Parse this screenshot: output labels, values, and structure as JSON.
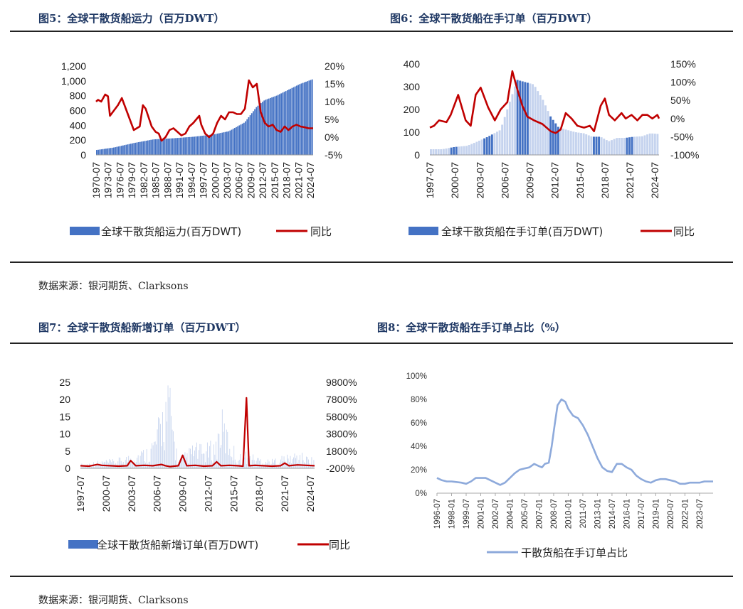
{
  "titles": {
    "fig5": "图5：全球干散货船运力（百万DWT）",
    "fig6": "图6：全球干散货船在手订单（百万DWT）",
    "fig7": "图7：全球干散货船新增订单（百万DWT）",
    "fig8": "图8：全球干散货船在手订单占比（%）"
  },
  "sources": {
    "top": "数据来源：银河期货、Clarksons",
    "bottom": "数据来源：银河期货、Clarksons"
  },
  "colors": {
    "bar": "#4472c4",
    "bar_light": "#c5d3ee",
    "line": "#c00000",
    "line8": "#8eaadb",
    "title": "#1f3864"
  },
  "chart_data": [
    {
      "id": "fig5",
      "type": "bar",
      "x_start": 1970.5,
      "x_end": 2025.2,
      "x_ticks": [
        "1970-07",
        "1973-07",
        "1976-07",
        "1979-07",
        "1982-07",
        "1985-07",
        "1988-07",
        "1991-07",
        "1994-07",
        "1997-07",
        "2000-07",
        "2003-07",
        "2006-07",
        "2009-07",
        "2012-07",
        "2015-07",
        "2018-07",
        "2021-07",
        "2024-07"
      ],
      "ylim": [
        0,
        1200
      ],
      "y_ticks": [
        "0",
        "200",
        "400",
        "600",
        "800",
        "1,000",
        "1,200"
      ],
      "y2lim": [
        -5,
        20
      ],
      "y2_ticks": [
        "-5%",
        "0%",
        "5%",
        "10%",
        "15%",
        "20%"
      ],
      "series": [
        {
          "name": "全球干散货船运力(百万DWT)",
          "type": "bar",
          "axis": "left",
          "x": [
            1970.5,
            1975,
            1980,
            1985,
            1990,
            1995,
            2000,
            2004,
            2008,
            2011,
            2013,
            2016,
            2019,
            2022,
            2025
          ],
          "values": [
            65,
            100,
            160,
            210,
            225,
            245,
            275,
            320,
            440,
            650,
            740,
            800,
            880,
            960,
            1020
          ]
        },
        {
          "name": "同比",
          "type": "line",
          "axis": "right",
          "x": [
            1970.5,
            1971,
            1971.8,
            1972.8,
            1973.5,
            1974,
            1976,
            1977,
            1979,
            1980,
            1981.5,
            1982.3,
            1983,
            1984.5,
            1985.5,
            1986.3,
            1987,
            1988,
            1989,
            1990,
            1991,
            1992,
            1993,
            1994,
            1995,
            1996.5,
            1997,
            1998,
            1999,
            2000,
            2001,
            2002,
            2003,
            2004,
            2005,
            2006,
            2007,
            2008,
            2008.5,
            2009,
            2010,
            2011,
            2012,
            2013,
            2014,
            2015,
            2016,
            2017,
            2018,
            2019,
            2020,
            2021,
            2022,
            2023,
            2024,
            2025.2
          ],
          "values": [
            10,
            10.5,
            10,
            12,
            11.5,
            6,
            9,
            11,
            5,
            2,
            3,
            9,
            8,
            3,
            1.5,
            1,
            -1,
            0,
            2,
            2.5,
            1.5,
            0.5,
            1,
            3,
            4,
            6,
            3.5,
            1,
            0,
            1,
            4,
            6,
            5,
            7,
            7,
            6.5,
            6.5,
            8,
            12,
            16,
            14,
            15,
            7,
            4,
            3,
            3.5,
            2,
            1.5,
            3,
            2,
            3,
            3.5,
            3,
            2.8,
            2.5,
            2.5
          ]
        }
      ]
    },
    {
      "id": "fig6",
      "type": "bar",
      "x_start": 1997.5,
      "x_end": 2025.0,
      "x_ticks": [
        "1997-07",
        "2000-07",
        "2003-07",
        "2006-07",
        "2009-07",
        "2012-07",
        "2015-07",
        "2018-07",
        "2021-07",
        "2024-07"
      ],
      "ylim": [
        0,
        400
      ],
      "y_ticks": [
        "0",
        "100",
        "200",
        "300",
        "400"
      ],
      "y2lim": [
        -100,
        150
      ],
      "y2_ticks": [
        "-100%",
        "-50%",
        "0%",
        "50%",
        "100%",
        "150%"
      ],
      "series": [
        {
          "name": "全球干散货船在手订单(百万DWT)",
          "type": "bar",
          "axis": "left",
          "x": [
            1997.5,
            1999,
            2000.5,
            2002,
            2003,
            2004.5,
            2006,
            2007,
            2008,
            2009,
            2010,
            2011,
            2012,
            2013,
            2014,
            2015,
            2016,
            2017,
            2018,
            2019,
            2020,
            2021,
            2022,
            2023,
            2024,
            2025
          ],
          "values": [
            25,
            25,
            35,
            40,
            55,
            80,
            110,
            220,
            330,
            320,
            310,
            250,
            170,
            120,
            110,
            100,
            95,
            80,
            80,
            60,
            75,
            75,
            80,
            82,
            95,
            92
          ]
        },
        {
          "name": "同比",
          "type": "line",
          "axis": "right",
          "x": [
            1997.5,
            1998,
            1998.6,
            1999.5,
            2000,
            2000.9,
            2001.8,
            2002.4,
            2003,
            2003.6,
            2004.5,
            2005.3,
            2006,
            2006.8,
            2007.4,
            2008,
            2008.6,
            2009.2,
            2010,
            2011,
            2012,
            2012.6,
            2013.2,
            2013.8,
            2014.5,
            2015.2,
            2016,
            2016.7,
            2017.2,
            2018,
            2018.5,
            2019,
            2019.7,
            2020.5,
            2021,
            2021.7,
            2022.4,
            2023,
            2023.6,
            2024.2,
            2024.8,
            2025
          ],
          "values": [
            -25,
            -20,
            -5,
            -10,
            10,
            65,
            -5,
            -20,
            65,
            85,
            30,
            -5,
            25,
            45,
            130,
            80,
            35,
            5,
            -5,
            -15,
            -35,
            -40,
            -30,
            15,
            0,
            -20,
            -25,
            -20,
            -35,
            35,
            55,
            10,
            -5,
            15,
            0,
            10,
            -5,
            10,
            10,
            0,
            10,
            0
          ]
        }
      ]
    },
    {
      "id": "fig7",
      "type": "bar",
      "x_start": 1997.5,
      "x_end": 2025.0,
      "x_ticks": [
        "1997-07",
        "2000-07",
        "2003-07",
        "2006-07",
        "2009-07",
        "2012-07",
        "2015-07",
        "2018-07",
        "2021-07",
        "2024-07"
      ],
      "ylim": [
        0,
        25
      ],
      "y_ticks": [
        "0",
        "5",
        "10",
        "15",
        "20",
        "25"
      ],
      "y2lim": [
        -200,
        9800
      ],
      "y2_ticks": [
        "-200%",
        "1800%",
        "3800%",
        "5800%",
        "7800%",
        "9800%"
      ],
      "series": [
        {
          "name": "全球干散货船新增订单(百万DWT)",
          "type": "bar",
          "axis": "left",
          "x": [
            1997.5,
            1999,
            2000.5,
            2001.5,
            2003,
            2004,
            2005.5,
            2006.5,
            2007,
            2007.5,
            2008,
            2008.5,
            2009,
            2010,
            2011,
            2012,
            2013.5,
            2014,
            2015,
            2016,
            2017,
            2018,
            2019,
            2020,
            2021,
            2022,
            2023,
            2024,
            2025
          ],
          "values": [
            1,
            1.5,
            2,
            2,
            3,
            4,
            5,
            9,
            15,
            18,
            20,
            10,
            2,
            4,
            6,
            5,
            7,
            14,
            8,
            3,
            4,
            3,
            2.5,
            2,
            3,
            3,
            4,
            3,
            2.5
          ]
        },
        {
          "name": "同比",
          "type": "line",
          "axis": "right",
          "x": [
            1997.5,
            1998.5,
            1999.5,
            2000,
            2001,
            2002,
            2003,
            2003.4,
            2004,
            2005,
            2006,
            2007,
            2007.5,
            2008,
            2009,
            2009.5,
            2010,
            2011,
            2012,
            2013,
            2013.5,
            2014,
            2015,
            2016,
            2016.6,
            2017,
            2017.3,
            2018,
            2019,
            2020,
            2021,
            2021.5,
            2022,
            2023,
            2024,
            2025
          ],
          "values": [
            100,
            50,
            250,
            150,
            100,
            50,
            100,
            700,
            100,
            150,
            100,
            250,
            100,
            0,
            100,
            1300,
            100,
            150,
            50,
            100,
            550,
            100,
            150,
            100,
            50,
            8000,
            100,
            150,
            100,
            50,
            100,
            400,
            100,
            200,
            150,
            100
          ]
        }
      ]
    },
    {
      "id": "fig8",
      "type": "line",
      "x_start": 1996.5,
      "x_end": 2024.9,
      "x_ticks": [
        "1996-07",
        "1998-01",
        "1999-07",
        "2001-01",
        "2002-07",
        "2004-01",
        "2005-07",
        "2007-01",
        "2008-07",
        "2010-01",
        "2011-07",
        "2013-01",
        "2014-07",
        "2016-01",
        "2017-07",
        "2019-01",
        "2020-07",
        "2022-01",
        "2023-07"
      ],
      "ylim": [
        0,
        100
      ],
      "y_ticks": [
        "0%",
        "20%",
        "40%",
        "60%",
        "80%",
        "100%"
      ],
      "series": [
        {
          "name": "干散货船在手订单占比",
          "x": [
            1996.5,
            1997,
            1997.5,
            1998,
            1999,
            1999.5,
            2000,
            2000.5,
            2001.5,
            2002,
            2002.5,
            2003,
            2003.5,
            2004,
            2004.5,
            2005,
            2005.5,
            2006,
            2006.5,
            2007,
            2007.3,
            2007.6,
            2008,
            2008.3,
            2008.6,
            2008.9,
            2009.3,
            2009.7,
            2010,
            2010.5,
            2011,
            2011.5,
            2012,
            2012.5,
            2013,
            2013.5,
            2014,
            2014.5,
            2015,
            2015.5,
            2016,
            2016.5,
            2017,
            2017.5,
            2018,
            2018.5,
            2019,
            2019.5,
            2020,
            2020.5,
            2021,
            2021.5,
            2022,
            2022.5,
            2023,
            2023.5,
            2024,
            2024.9
          ],
          "values": [
            13,
            11,
            10,
            10,
            9,
            8,
            10,
            13,
            13,
            11,
            9,
            7,
            9,
            13,
            17,
            20,
            21,
            22,
            25,
            23,
            22,
            25,
            26,
            40,
            58,
            75,
            80,
            78,
            72,
            66,
            64,
            58,
            50,
            40,
            30,
            22,
            19,
            18,
            25,
            25,
            22,
            20,
            15,
            12,
            10,
            9,
            11,
            12,
            12,
            11,
            10,
            8,
            8,
            9,
            9,
            9,
            10,
            10
          ]
        }
      ]
    }
  ]
}
